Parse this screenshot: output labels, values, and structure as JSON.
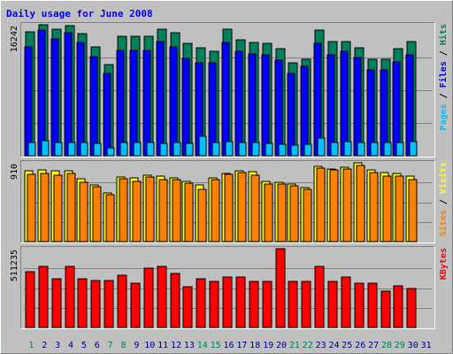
{
  "chart_data": {
    "type": "bar",
    "title": "Daily usage for June 2008",
    "days": [
      1,
      2,
      3,
      4,
      5,
      6,
      7,
      8,
      9,
      10,
      11,
      12,
      13,
      14,
      15,
      16,
      17,
      18,
      19,
      20,
      21,
      22,
      23,
      24,
      25,
      26,
      27,
      28,
      29,
      30,
      31
    ],
    "weekend_days": [
      1,
      7,
      8,
      14,
      15,
      21,
      22,
      28,
      29
    ],
    "colors": {
      "background": "#c0c0c0",
      "title": "#0000ff",
      "hits": "#00805c",
      "files": "#0000ff",
      "pages": "#00c0ff",
      "visits": "#ffff00",
      "sites": "#ff8000",
      "kbytes": "#ff0000",
      "weekday_label": "#000080",
      "weekend_label": "#00805c"
    },
    "panels": [
      {
        "id": "hits-files-pages",
        "ymax_label": "16242",
        "ymax": 16242,
        "legend": [
          {
            "text": "Pages",
            "color": "#00c0ff"
          },
          {
            "text": " / ",
            "color": "#000000"
          },
          {
            "text": "Files",
            "color": "#0000ff"
          },
          {
            "text": " / ",
            "color": "#000000"
          },
          {
            "text": "Hits",
            "color": "#00805c"
          }
        ],
        "series": [
          {
            "name": "Hits",
            "color": "#00805c",
            "values": [
              15400,
              16242,
              15700,
              16100,
              15100,
              13500,
              11300,
              14800,
              14800,
              14800,
              15700,
              15300,
              13900,
              13400,
              12900,
              15700,
              14400,
              14100,
              13900,
              13300,
              11500,
              12000,
              15600,
              14200,
              14200,
              13400,
              12000,
              12000,
              13300,
              14200,
              0
            ]
          },
          {
            "name": "Files",
            "color": "#0000ff",
            "values": [
              13500,
              15600,
              14500,
              15300,
              14000,
              12300,
              10200,
              13100,
              13100,
              13100,
              14200,
              13500,
              12100,
              11500,
              11500,
              14000,
              12900,
              12600,
              12500,
              11900,
              10200,
              11100,
              13900,
              12500,
              12900,
              12200,
              10600,
              10600,
              11600,
              12500,
              0
            ]
          },
          {
            "name": "Pages",
            "color": "#00c0ff",
            "values": [
              1600,
              1900,
              1700,
              1700,
              1700,
              1500,
              1000,
              1700,
              1700,
              1700,
              1500,
              1600,
              1500,
              2400,
              1600,
              1800,
              1700,
              1600,
              1500,
              1400,
              1300,
              1400,
              2200,
              1600,
              1800,
              1700,
              1700,
              1700,
              1600,
              1800,
              0
            ]
          }
        ]
      },
      {
        "id": "visits-sites",
        "ymax_label": "910",
        "ymax": 910,
        "legend": [
          {
            "text": "Sites",
            "color": "#ff8000"
          },
          {
            "text": " / ",
            "color": "#000000"
          },
          {
            "text": "Visits",
            "color": "#ffff00"
          }
        ],
        "series": [
          {
            "name": "Visits",
            "color": "#ffff00",
            "values": [
              820,
              830,
              820,
              820,
              730,
              650,
              560,
              750,
              740,
              770,
              760,
              740,
              700,
              650,
              740,
              790,
              820,
              810,
              700,
              690,
              660,
              620,
              870,
              840,
              860,
              910,
              830,
              800,
              790,
              760,
              0
            ]
          },
          {
            "name": "Sites",
            "color": "#ff8000",
            "values": [
              780,
              790,
              770,
              790,
              680,
              630,
              540,
              730,
              700,
              750,
              720,
              720,
              670,
              600,
              720,
              780,
              800,
              770,
              660,
              660,
              640,
              600,
              850,
              830,
              840,
              880,
              800,
              760,
              760,
              720,
              0
            ]
          }
        ]
      },
      {
        "id": "kbytes",
        "ymax_label": "511235",
        "ymax": 511235,
        "legend": [
          {
            "text": "KBytes",
            "color": "#ff0000"
          }
        ],
        "series": [
          {
            "name": "KBytes",
            "color": "#ff0000",
            "values": [
              360000,
              399000,
              314000,
              399000,
              314000,
              306000,
              306000,
              340000,
              288000,
              382000,
              399000,
              348000,
              263000,
              314000,
              297000,
              330000,
              330000,
              297000,
              297000,
              511235,
              297000,
              297000,
              399000,
              297000,
              330000,
              288000,
              288000,
              237000,
              271000,
              254000,
              0
            ]
          }
        ]
      }
    ]
  }
}
